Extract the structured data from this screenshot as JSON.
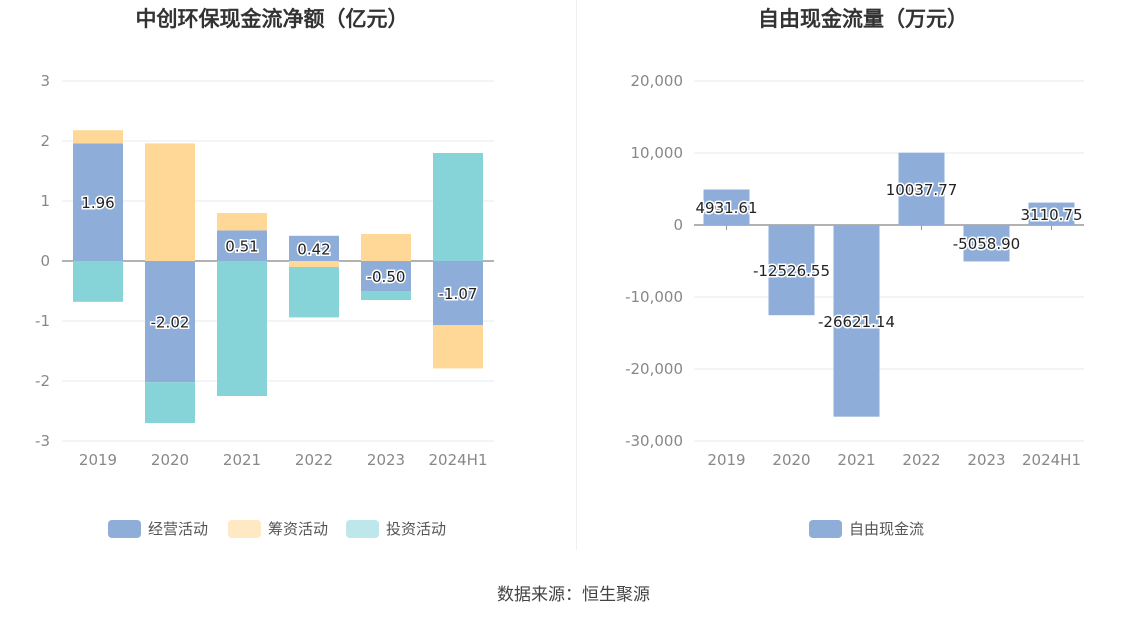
{
  "source": "数据来源：恒生聚源",
  "colors": {
    "operating": "#8eadd9",
    "financing": "#ffd796",
    "investing": "#86d4d8",
    "free_cash_flow": "#8eadd9"
  },
  "chart_data": [
    {
      "type": "bar",
      "stacked": true,
      "title": "中创环保现金流净额（亿元）",
      "xlabel": "",
      "ylabel": "",
      "categories": [
        "2019",
        "2020",
        "2021",
        "2022",
        "2023",
        "2024H1"
      ],
      "ylim": [
        -3,
        3
      ],
      "yticks": [
        "-3",
        "-2",
        "-1",
        "0",
        "1",
        "2",
        "3"
      ],
      "grid": true,
      "legend_position": "bottom",
      "series": [
        {
          "name": "经营活动",
          "values": [
            1.96,
            -2.02,
            0.51,
            0.42,
            -0.5,
            -1.07
          ],
          "labels": [
            "1.96",
            "-2.02",
            "0.51",
            "0.42",
            "-0.50",
            "-1.07"
          ]
        },
        {
          "name": "筹资活动",
          "values": [
            0.22,
            1.96,
            0.29,
            -0.1,
            0.45,
            -0.72
          ]
        },
        {
          "name": "投资活动",
          "values": [
            -0.68,
            -0.68,
            -2.25,
            -0.84,
            -0.15,
            1.8
          ]
        }
      ]
    },
    {
      "type": "bar",
      "title": "自由现金流量（万元）",
      "xlabel": "",
      "ylabel": "",
      "categories": [
        "2019",
        "2020",
        "2021",
        "2022",
        "2023",
        "2024H1"
      ],
      "ylim": [
        -30000,
        20000
      ],
      "yticks": [
        "-30,000",
        "-20,000",
        "-10,000",
        "0",
        "10,000",
        "20,000"
      ],
      "grid": true,
      "legend_position": "bottom",
      "series": [
        {
          "name": "自由现金流",
          "values": [
            4931.61,
            -12526.55,
            -26621.14,
            10037.77,
            -5058.9,
            3110.75
          ],
          "labels": [
            "4931.61",
            "-12526.55",
            "-26621.14",
            "10037.77",
            "-5058.90",
            "3110.75"
          ]
        }
      ]
    }
  ]
}
